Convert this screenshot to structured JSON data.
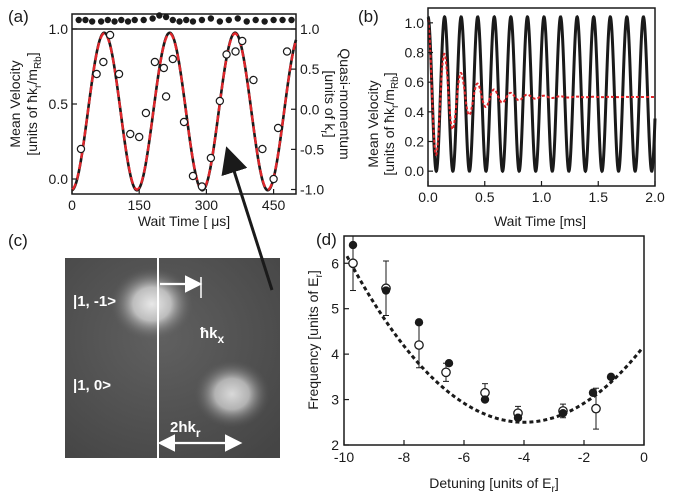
{
  "figure": {
    "colors": {
      "theory": "#1a1a1a",
      "fit": "#e0262b",
      "image_bg": "#555555",
      "arrow": "#ffffff"
    }
  },
  "panel_a": {
    "label": "(a)",
    "xlabel": "Wait Time [ μs]",
    "ylabel_left_1": "Mean Velocity",
    "ylabel_left_2": "[units of ħk",
    "ylabel_left_2_sub1": "r",
    "ylabel_left_2_mid": "/m",
    "ylabel_left_2_sub2": "Rb",
    "ylabel_left_2_end": "]",
    "ylabel_right_1": "Quasi-momentum",
    "ylabel_right_2": "[units of k",
    "ylabel_right_2_sub": "r",
    "ylabel_right_2_end": "]",
    "xticks": [
      "0",
      "150",
      "300",
      "450"
    ],
    "yticks_left": [
      "0.0",
      "0.5",
      "1.0"
    ],
    "yticks_right": [
      "1.0",
      "0.5",
      "0.0",
      "-0.5",
      "-1.0"
    ]
  },
  "panel_b": {
    "label": "(b)",
    "xlabel": "Wait Time [ms]",
    "ylabel_1": "Mean Velocity",
    "ylabel_2": "[units of ħk",
    "ylabel_2_sub1": "r",
    "ylabel_2_mid": "/m",
    "ylabel_2_sub2": "Rb",
    "ylabel_2_end": "]",
    "xticks": [
      "0.0",
      "0.5",
      "1.0",
      "1.5",
      "2.0"
    ],
    "yticks": [
      "0.0",
      "0.2",
      "0.4",
      "0.6",
      "0.8",
      "1.0"
    ]
  },
  "panel_c": {
    "label": "(c)",
    "state_top": "|1, -1>",
    "state_bottom": "|1, 0>",
    "hk_label": "ħk",
    "hk_sub": "x",
    "two_hk_label": "2hk",
    "two_hk_sub": "r"
  },
  "panel_d": {
    "label": "(d)",
    "xlabel": "Detuning [units of E",
    "xlabel_sub": "r",
    "xlabel_end": "]",
    "ylabel": "Frequency [units of E",
    "ylabel_sub": "r",
    "ylabel_end": "]",
    "xticks": [
      "-10",
      "-8",
      "-6",
      "-4",
      "-2",
      "0"
    ],
    "yticks": [
      "2",
      "3",
      "4",
      "5",
      "6"
    ]
  },
  "chart_data": [
    {
      "panel": "a",
      "type": "scatter",
      "xlabel": "Wait Time [ μs]",
      "ylabel": "Mean Velocity [units of ħkr/mRb]",
      "xlim": [
        0,
        500
      ],
      "ylim": [
        -0.1,
        1.1
      ],
      "series": [
        {
          "style": "points-open",
          "x": [
            20,
            55,
            70,
            85,
            105,
            130,
            150,
            165,
            185,
            205,
            210,
            225,
            250,
            270,
            290,
            310,
            330,
            345,
            365,
            380,
            405,
            425,
            450,
            460,
            480
          ],
          "y": [
            0.2,
            0.7,
            0.78,
            0.96,
            0.7,
            0.3,
            0.28,
            0.44,
            0.78,
            0.74,
            0.55,
            0.8,
            0.38,
            0.02,
            -0.05,
            0.14,
            0.52,
            0.83,
            0.85,
            0.92,
            0.66,
            0.2,
            0.0,
            0.34,
            0.85
          ]
        },
        {
          "style": "points-filled",
          "x": [
            15,
            30,
            45,
            65,
            80,
            95,
            110,
            125,
            140,
            160,
            180,
            195,
            210,
            225,
            240,
            255,
            270,
            290,
            310,
            330,
            350,
            370,
            390,
            410,
            430,
            450,
            470,
            490
          ],
          "y": [
            1.06,
            1.06,
            1.05,
            1.05,
            1.06,
            1.05,
            1.06,
            1.05,
            1.06,
            1.06,
            1.07,
            1.09,
            1.08,
            1.06,
            1.05,
            1.06,
            1.05,
            1.06,
            1.07,
            1.05,
            1.06,
            1.07,
            1.05,
            1.06,
            1.05,
            1.06,
            1.06,
            1.06
          ]
        },
        {
          "style": "line-theory",
          "model": "0.45+0.525*cos(2*pi*(t-72)/146)"
        },
        {
          "style": "line-fit-dashed",
          "model": "0.45+0.52*cos(2*pi*(t-72)/146)"
        },
        {
          "style": "line-horizontal",
          "y": 1.0
        }
      ]
    },
    {
      "panel": "b",
      "type": "line",
      "xlabel": "Wait Time [ms]",
      "ylabel": "Mean Velocity [units of ħkr/mRb]",
      "xlim": [
        0,
        2.0
      ],
      "ylim": [
        -0.1,
        1.1
      ],
      "series": [
        {
          "style": "line-theory",
          "model": "0.52+0.52*cos(2*pi*t/0.146)"
        },
        {
          "style": "line-fit-damped",
          "model": "0.5+0.52*exp(-t/0.25)*cos(2*pi*t/0.146)"
        }
      ]
    },
    {
      "panel": "d",
      "type": "scatter",
      "xlabel": "Detuning [units of Er]",
      "ylabel": "Frequency [units of Er]",
      "xlim": [
        -10,
        0
      ],
      "ylim": [
        2,
        6.6
      ],
      "series": [
        {
          "style": "points-filled",
          "x": [
            -9.7,
            -8.6,
            -7.5,
            -6.5,
            -5.3,
            -4.2,
            -2.7,
            -1.7,
            -1.1
          ],
          "y": [
            6.4,
            5.4,
            4.7,
            3.8,
            3.0,
            2.6,
            2.7,
            3.15,
            3.5
          ]
        },
        {
          "style": "points-open",
          "x": [
            -9.7,
            -8.6,
            -7.5,
            -6.6,
            -5.3,
            -4.2,
            -2.7,
            -1.6
          ],
          "y": [
            6.0,
            5.45,
            4.2,
            3.6,
            3.15,
            2.7,
            2.75,
            2.8
          ],
          "error": [
            0.6,
            0.6,
            0.5,
            0.2,
            0.2,
            0.15,
            0.15,
            0.45
          ]
        },
        {
          "style": "line-dashed",
          "model": "2.5+0.105*(x+4)^2"
        }
      ]
    }
  ]
}
